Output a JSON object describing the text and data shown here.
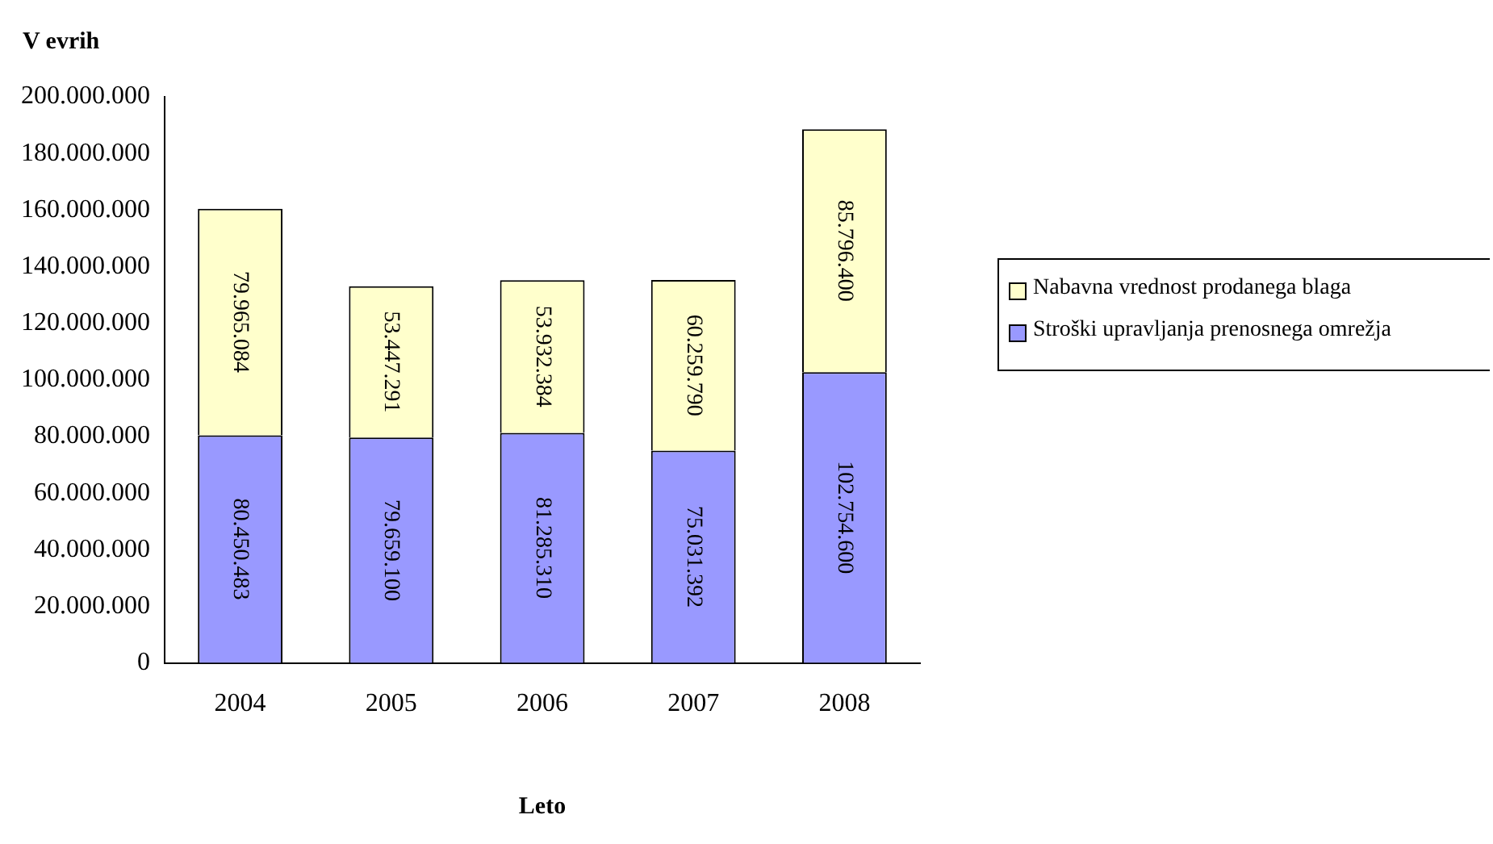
{
  "chart_data": {
    "type": "bar",
    "stacked": true,
    "ylabel": "V evrih",
    "xlabel": "Leto",
    "categories": [
      "2004",
      "2005",
      "2006",
      "2007",
      "2008"
    ],
    "series": [
      {
        "name": "Stroški upravljanja prenosnega omrežja",
        "color": "#9999ff",
        "values": [
          80450483,
          79659100,
          81285310,
          75031392,
          102754600
        ],
        "value_labels": [
          "80.450.483",
          "79.659.100",
          "81.285.310",
          "75.031.392",
          "102.754.600"
        ]
      },
      {
        "name": "Nabavna vrednost prodanega blaga",
        "color": "#ffffcc",
        "values": [
          79965084,
          53447291,
          53932384,
          60259790,
          85796400
        ],
        "value_labels": [
          "79.965.084",
          "53.447.291",
          "53.932.384",
          "60.259.790",
          "85.796.400"
        ]
      }
    ],
    "ylim": [
      0,
      200000000
    ],
    "yticks": [
      0,
      {
        "value": 20000000,
        "label": "20.000.000"
      },
      {
        "value": 40000000,
        "label": "40.000.000"
      },
      {
        "value": 60000000,
        "label": "60.000.000"
      },
      {
        "value": 80000000,
        "label": "80.000.000"
      },
      {
        "value": 100000000,
        "label": "100.000.000"
      },
      {
        "value": 120000000,
        "label": "120.000.000"
      },
      {
        "value": 140000000,
        "label": "140.000.000"
      },
      {
        "value": 160000000,
        "label": "160.000.000"
      },
      {
        "value": 180000000,
        "label": "180.000.000"
      },
      {
        "value": 200000000,
        "label": "200.000.000"
      }
    ],
    "grid": false,
    "legend": "right"
  }
}
